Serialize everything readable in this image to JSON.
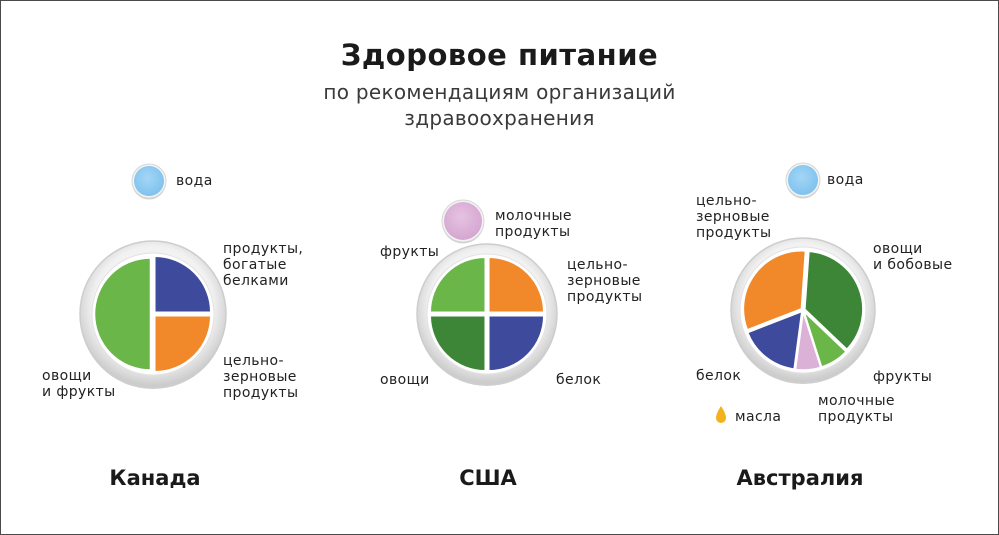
{
  "title": "Здоровое питание",
  "subtitle": [
    "по рекомендациям организаций",
    "здравоохранения"
  ],
  "colors": {
    "green": "#6ab649",
    "dark_green": "#3d8637",
    "blue": "#3e4a9b",
    "orange": "#f1882a",
    "pink": "#dcb1d8",
    "water": "#8ccaf1",
    "oil": "#f2b21b"
  },
  "chart_data": [
    {
      "type": "pie",
      "country": "Канада",
      "water_label": "вода",
      "slices": [
        {
          "label": [
            "продукты,",
            "богатые",
            "белками"
          ],
          "value": 25,
          "color": "#3e4a9b"
        },
        {
          "label": [
            "цельно-",
            "зерновые",
            "продукты"
          ],
          "value": 25,
          "color": "#f1882a"
        },
        {
          "label": [
            "овощи",
            "и фрукты"
          ],
          "value": 50,
          "color": "#6ab649"
        }
      ]
    },
    {
      "type": "pie",
      "country": "США",
      "dairy_label": [
        "молочные",
        "продукты"
      ],
      "slices": [
        {
          "label": [
            "цельно-",
            "зерновые",
            "продукты"
          ],
          "value": 25,
          "color": "#f1882a"
        },
        {
          "label": [
            "белок"
          ],
          "value": 25,
          "color": "#3e4a9b"
        },
        {
          "label": [
            "овощи"
          ],
          "value": 25,
          "color": "#3d8637"
        },
        {
          "label": [
            "фрукты"
          ],
          "value": 25,
          "color": "#6ab649"
        }
      ]
    },
    {
      "type": "pie",
      "country": "Австралия",
      "water_label": "вода",
      "oil_label": "масла",
      "slices": [
        {
          "label": [
            "овощи",
            "и бобовые"
          ],
          "value": 36,
          "color": "#3d8637"
        },
        {
          "label": [
            "фрукты"
          ],
          "value": 8,
          "color": "#6ab649"
        },
        {
          "label": [
            "молочные",
            "продукты"
          ],
          "value": 7,
          "color": "#dcb1d8"
        },
        {
          "label": [
            "белок"
          ],
          "value": 17,
          "color": "#3e4a9b"
        },
        {
          "label": [
            "цельно-",
            "зерновые",
            "продукты"
          ],
          "value": 32,
          "color": "#f1882a"
        }
      ]
    }
  ]
}
